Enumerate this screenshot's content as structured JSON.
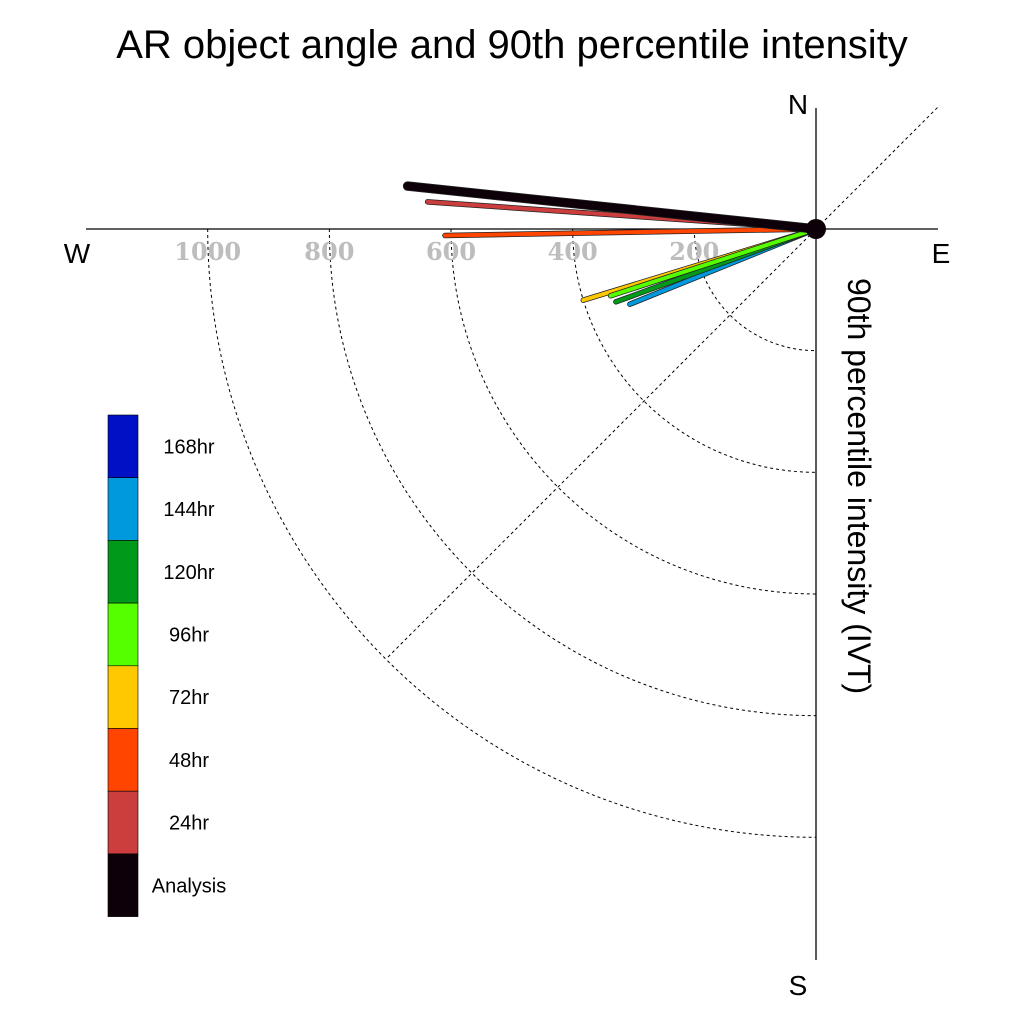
{
  "chart_data": {
    "type": "polar-vector",
    "title": "AR object angle and 90th percentile intensity",
    "ylabel": "90th percentile intensity (IVT)",
    "compass": {
      "north": "N",
      "south": "S",
      "east": "E",
      "west": "W"
    },
    "radial_ticks": [
      200,
      400,
      600,
      800,
      1000
    ],
    "radial_tick_labels": [
      "200",
      "400",
      "600",
      "800",
      "1000"
    ],
    "rings": [
      200,
      400,
      600,
      800,
      1000
    ],
    "r_max": 1000,
    "grid": true,
    "legend_placement": "left",
    "legend": [
      {
        "label": "168hr",
        "color": "#0010C4"
      },
      {
        "label": "144hr",
        "color": "#0099DD"
      },
      {
        "label": "120hr",
        "color": "#00991A"
      },
      {
        "label": "96hr",
        "color": "#55FF00"
      },
      {
        "label": "72hr",
        "color": "#FFC800"
      },
      {
        "label": "48hr",
        "color": "#FF4500"
      },
      {
        "label": "24hr",
        "color": "#CC3D3D"
      },
      {
        "label": "Analysis",
        "color": "#0D0009"
      }
    ],
    "series": [
      {
        "name": "144hr",
        "color": "#0099DD",
        "angle_deg": 202,
        "intensity": 330
      },
      {
        "name": "120hr",
        "color": "#00991A",
        "angle_deg": 200,
        "intensity": 350
      },
      {
        "name": "72hr",
        "color": "#FFC800",
        "angle_deg": 197,
        "intensity": 400
      },
      {
        "name": "96hr",
        "color": "#55FF00",
        "angle_deg": 198,
        "intensity": 355
      },
      {
        "name": "48hr",
        "color": "#FF4500",
        "angle_deg": 181,
        "intensity": 610
      },
      {
        "name": "24hr",
        "color": "#CC3D3D",
        "angle_deg": 176,
        "intensity": 640
      },
      {
        "name": "Analysis",
        "color": "#0D0009",
        "angle_deg": 174,
        "intensity": 675
      }
    ]
  }
}
